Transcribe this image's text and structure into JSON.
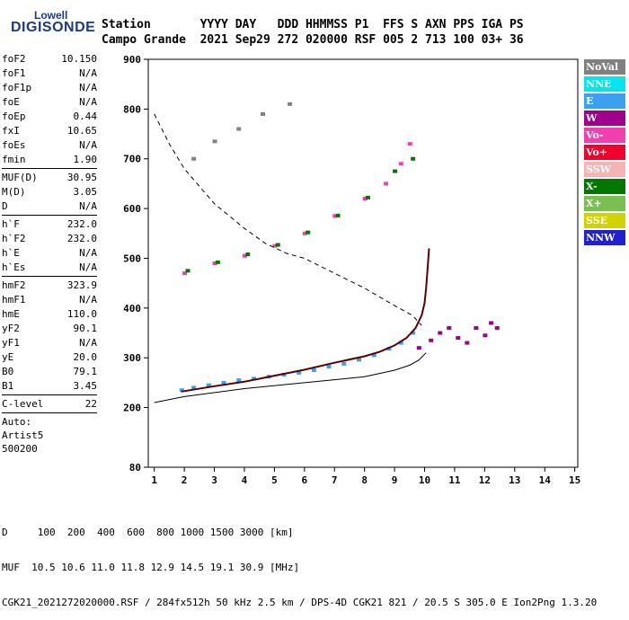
{
  "logo": {
    "line1": "Lowell",
    "line2": "DIGISONDE"
  },
  "header": {
    "labels": "Station       YYYY DAY   DDD HHMMSS P1  FFS S AXN PPS IGA PS",
    "values": "Campo Grande  2021 Sep29 272 020000 RSF 005 2 713 100 03+ 36"
  },
  "params": {
    "g1": [
      {
        "k": "foF2",
        "v": "10.150"
      },
      {
        "k": "foF1",
        "v": "N/A"
      },
      {
        "k": "foF1p",
        "v": "N/A"
      },
      {
        "k": "foE",
        "v": "N/A"
      },
      {
        "k": "foEp",
        "v": "0.44"
      },
      {
        "k": "fxI",
        "v": "10.65"
      },
      {
        "k": "foEs",
        "v": "N/A"
      },
      {
        "k": "fmin",
        "v": "1.90"
      }
    ],
    "g2": [
      {
        "k": "MUF(D)",
        "v": "30.95"
      },
      {
        "k": "M(D)",
        "v": "3.05"
      },
      {
        "k": "D",
        "v": "N/A"
      }
    ],
    "g3": [
      {
        "k": "h`F",
        "v": "232.0"
      },
      {
        "k": "h`F2",
        "v": "232.0"
      },
      {
        "k": "h`E",
        "v": "N/A"
      },
      {
        "k": "h`Es",
        "v": "N/A"
      }
    ],
    "g4": [
      {
        "k": "hmF2",
        "v": "323.9"
      },
      {
        "k": "hmF1",
        "v": "N/A"
      },
      {
        "k": "hmE",
        "v": "110.0"
      },
      {
        "k": "yF2",
        "v": "90.1"
      },
      {
        "k": "yF1",
        "v": "N/A"
      },
      {
        "k": "yE",
        "v": "20.0"
      },
      {
        "k": "B0",
        "v": "79.1"
      },
      {
        "k": "B1",
        "v": "3.45"
      }
    ],
    "clevel": {
      "k": "C-level",
      "v": "22"
    },
    "auto": [
      "Auto:",
      "Artist5",
      "500200"
    ]
  },
  "legend": [
    {
      "label": "NoVal",
      "color": "#808080"
    },
    {
      "label": "NNE",
      "color": "#00e5ee"
    },
    {
      "label": "E",
      "color": "#3ca0f0"
    },
    {
      "label": "W",
      "color": "#a0008c"
    },
    {
      "label": "Vo-",
      "color": "#f040b0"
    },
    {
      "label": "Vo+",
      "color": "#f0002a"
    },
    {
      "label": "SSW",
      "color": "#f5b4b4"
    },
    {
      "label": "X-",
      "color": "#007800"
    },
    {
      "label": "X+",
      "color": "#7ac050"
    },
    {
      "label": "SSE",
      "color": "#d2d200"
    },
    {
      "label": "NNW",
      "color": "#2020d0"
    }
  ],
  "footer": {
    "line1": "D     100  200  400  600  800 1000 1500 3000 [km]",
    "line2": "MUF  10.5 10.6 11.0 11.8 12.9 14.5 19.1 30.9 [MHz]",
    "line3": "CGK21_2021272020000.RSF / 284fx512h 50 kHz 2.5 km / DPS-4D CGK21 821 / 20.5 S 305.0 E Ion2Png 1.3.20"
  },
  "chart_data": {
    "type": "scatter",
    "x_ticks": [
      1,
      2,
      3,
      4,
      5,
      6,
      7,
      8,
      9,
      10,
      11,
      12,
      13,
      14,
      15
    ],
    "y_ticks": [
      80,
      200,
      300,
      400,
      500,
      600,
      700,
      800,
      900
    ],
    "xlim": [
      0.8,
      15.1
    ],
    "ylim": [
      80,
      900
    ],
    "grid": false,
    "legend_position": "right",
    "traces": {
      "o_trace_solid": [
        [
          1.9,
          232
        ],
        [
          3,
          243
        ],
        [
          4,
          252
        ],
        [
          5,
          264
        ],
        [
          6,
          276
        ],
        [
          7,
          290
        ],
        [
          8,
          303
        ],
        [
          8.5,
          312
        ],
        [
          9,
          325
        ],
        [
          9.4,
          340
        ],
        [
          9.7,
          360
        ],
        [
          9.9,
          385
        ],
        [
          10,
          410
        ],
        [
          10.05,
          440
        ],
        [
          10.1,
          480
        ],
        [
          10.15,
          520
        ]
      ],
      "profile_solid": [
        [
          1,
          210
        ],
        [
          2,
          222
        ],
        [
          4,
          238
        ],
        [
          6,
          250
        ],
        [
          7,
          256
        ],
        [
          8,
          262
        ],
        [
          9,
          275
        ],
        [
          9.5,
          285
        ],
        [
          9.8,
          295
        ],
        [
          10.05,
          310
        ]
      ],
      "dashed_muf": [
        [
          1,
          790
        ],
        [
          1.5,
          730
        ],
        [
          2,
          680
        ],
        [
          3,
          610
        ],
        [
          4,
          560
        ],
        [
          4.7,
          530
        ],
        [
          5.4,
          510
        ],
        [
          6,
          500
        ],
        [
          7,
          470
        ],
        [
          8,
          440
        ],
        [
          9,
          405
        ],
        [
          9.6,
          385
        ],
        [
          9.9,
          365
        ]
      ],
      "o_clusters": [
        {
          "color": "#3ca0f0",
          "pts": [
            [
              1.9,
              235
            ],
            [
              2.3,
              240
            ],
            [
              2.8,
              245
            ],
            [
              3.3,
              250
            ],
            [
              3.8,
              255
            ],
            [
              4.3,
              258
            ],
            [
              4.8,
              262
            ],
            [
              5.3,
              266
            ],
            [
              5.8,
              270
            ],
            [
              6.3,
              275
            ],
            [
              6.8,
              282
            ],
            [
              7.3,
              288
            ],
            [
              7.8,
              296
            ],
            [
              8.3,
              305
            ],
            [
              8.8,
              318
            ],
            [
              9.2,
              330
            ],
            [
              9.6,
              350
            ]
          ]
        },
        {
          "color": "#a0008c",
          "pts": [
            [
              9.8,
              320
            ],
            [
              10.2,
              335
            ],
            [
              10.5,
              350
            ],
            [
              10.8,
              360
            ],
            [
              11.1,
              340
            ],
            [
              11.4,
              330
            ],
            [
              11.7,
              360
            ],
            [
              12,
              345
            ],
            [
              12.2,
              370
            ],
            [
              12.4,
              360
            ]
          ]
        },
        {
          "color": "#f040b0",
          "pts": [
            [
              2,
              470
            ],
            [
              3,
              490
            ],
            [
              4,
              505
            ],
            [
              5,
              525
            ],
            [
              6,
              550
            ],
            [
              7,
              585
            ],
            [
              8,
              620
            ],
            [
              8.7,
              650
            ],
            [
              9.2,
              690
            ],
            [
              9.5,
              730
            ]
          ]
        },
        {
          "color": "#007800",
          "pts": [
            [
              2.1,
              475
            ],
            [
              3.1,
              492
            ],
            [
              4.1,
              508
            ],
            [
              5.1,
              527
            ],
            [
              6.1,
              552
            ],
            [
              7.1,
              586
            ],
            [
              8.1,
              622
            ],
            [
              9,
              675
            ],
            [
              9.6,
              700
            ]
          ]
        },
        {
          "color": "#808080",
          "pts": [
            [
              2.3,
              700
            ],
            [
              3,
              735
            ],
            [
              3.8,
              760
            ],
            [
              4.6,
              790
            ],
            [
              5.5,
              810
            ]
          ]
        }
      ]
    }
  }
}
